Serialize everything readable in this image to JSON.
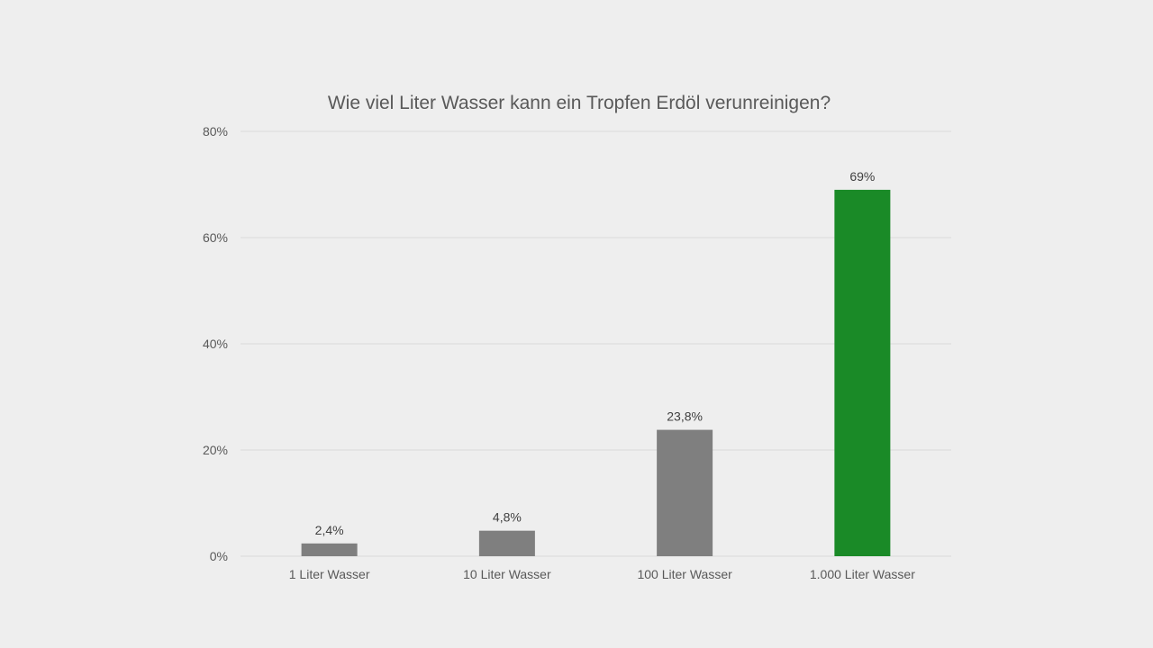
{
  "chart_data": {
    "type": "bar",
    "title": "Wie viel Liter Wasser kann ein Tropfen Erdöl verunreinigen?",
    "xlabel": "",
    "ylabel": "",
    "categories": [
      "1 Liter Wasser",
      "10 Liter Wasser",
      "100 Liter Wasser",
      "1.000 Liter Wasser"
    ],
    "values": [
      2.4,
      4.8,
      23.8,
      69
    ],
    "data_labels": [
      "2,4%",
      "4,8%",
      "23,8%",
      "69%"
    ],
    "ylim": [
      0,
      80
    ],
    "y_ticks": [
      {
        "value": 0,
        "label": "0%"
      },
      {
        "value": 20,
        "label": "20%"
      },
      {
        "value": 40,
        "label": "40%"
      },
      {
        "value": 60,
        "label": "60%"
      },
      {
        "value": 80,
        "label": "80%"
      }
    ],
    "grid": true,
    "legend": "none",
    "colors": {
      "default_bar": "#7f7f7f",
      "highlight_bar": "#1a8a27",
      "highlight_category": "1.000 Liter Wasser"
    }
  }
}
